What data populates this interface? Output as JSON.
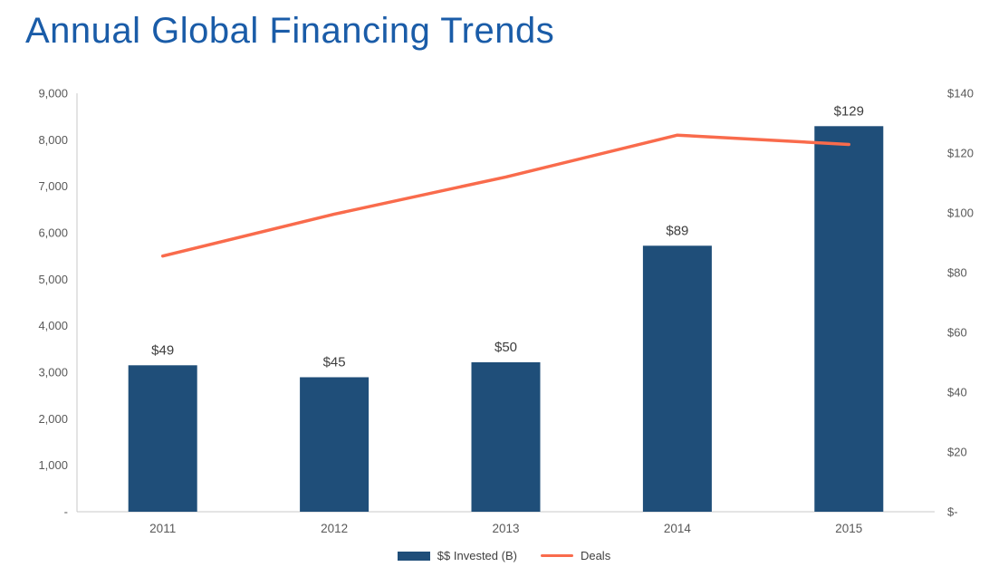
{
  "page": {
    "title": "Annual Global Financing Trends"
  },
  "colors": {
    "title": "#1A5CA8",
    "bar": "#1F4E79",
    "line": "#F96B4C",
    "axis_text": "#595959",
    "axis_line": "#C9C9C9",
    "data_label": "#3D3D3D"
  },
  "chart_data": {
    "type": "bar",
    "subtype": "combo-bar-line",
    "title": "Annual Global Financing Trends",
    "categories": [
      "2011",
      "2012",
      "2013",
      "2014",
      "2015"
    ],
    "series": [
      {
        "name": "$$ Invested (B)",
        "type": "bar",
        "axis": "right",
        "values": [
          49,
          45,
          50,
          89,
          129
        ],
        "labels": [
          "$49",
          "$45",
          "$50",
          "$89",
          "$129"
        ],
        "color": "#1F4E79"
      },
      {
        "name": "Deals",
        "type": "line",
        "axis": "left",
        "values": [
          5500,
          6400,
          7200,
          8100,
          7900
        ],
        "color": "#F96B4C"
      }
    ],
    "left_axis": {
      "min": 0,
      "max": 9000,
      "ticks": [
        "9,000",
        "8,000",
        "7,000",
        "6,000",
        "5,000",
        "4,000",
        "3,000",
        "2,000",
        "1,000",
        "-"
      ]
    },
    "right_axis": {
      "min": 0,
      "max": 140,
      "ticks": [
        "$140",
        "$120",
        "$100",
        "$80",
        "$60",
        "$40",
        "$20",
        "$-"
      ]
    },
    "grid": false,
    "legend_position": "bottom"
  }
}
